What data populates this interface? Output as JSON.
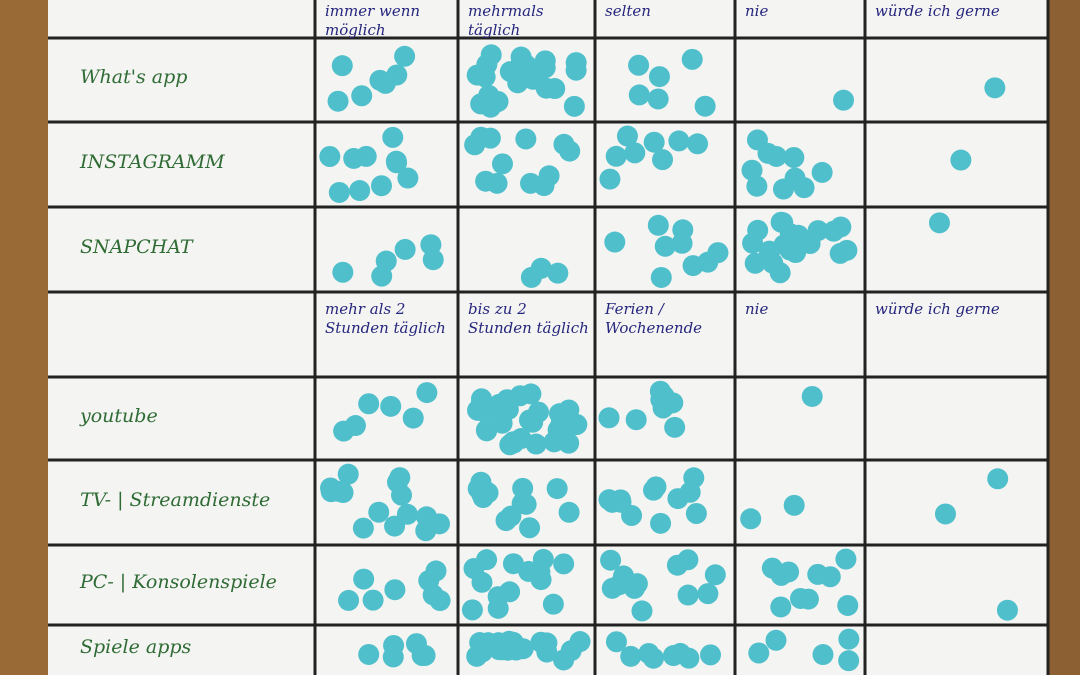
{
  "header_top": [
    "immer wenn möglich",
    "mehrmals täglich",
    "selten",
    "nie",
    "würde ich gerne"
  ],
  "header_bottom": [
    "mehr als 2 Stunden täglich",
    "bis zu 2 Stunden täglich",
    "Ferien / Wochenende",
    "nie",
    "würde ich gerne"
  ],
  "rows": [
    {
      "label": "What's app",
      "dots": [
        7,
        25,
        6,
        1,
        1
      ]
    },
    {
      "label": "INSTAGRAMM",
      "dots": [
        10,
        12,
        8,
        10,
        1
      ]
    },
    {
      "label": "SNAPCHAT",
      "dots": [
        6,
        3,
        9,
        20,
        1
      ]
    },
    {
      "label": "youtube",
      "dots": [
        6,
        30,
        8,
        1,
        0
      ]
    },
    {
      "label": "TV- | Streamdienste",
      "dots": [
        15,
        14,
        12,
        2,
        2
      ]
    },
    {
      "label": "PC- | Konsolenspiele",
      "dots": [
        8,
        14,
        12,
        10,
        1
      ]
    },
    {
      "label": "Spiele apps",
      "dots": [
        6,
        20,
        8,
        5,
        0
      ]
    }
  ]
}
